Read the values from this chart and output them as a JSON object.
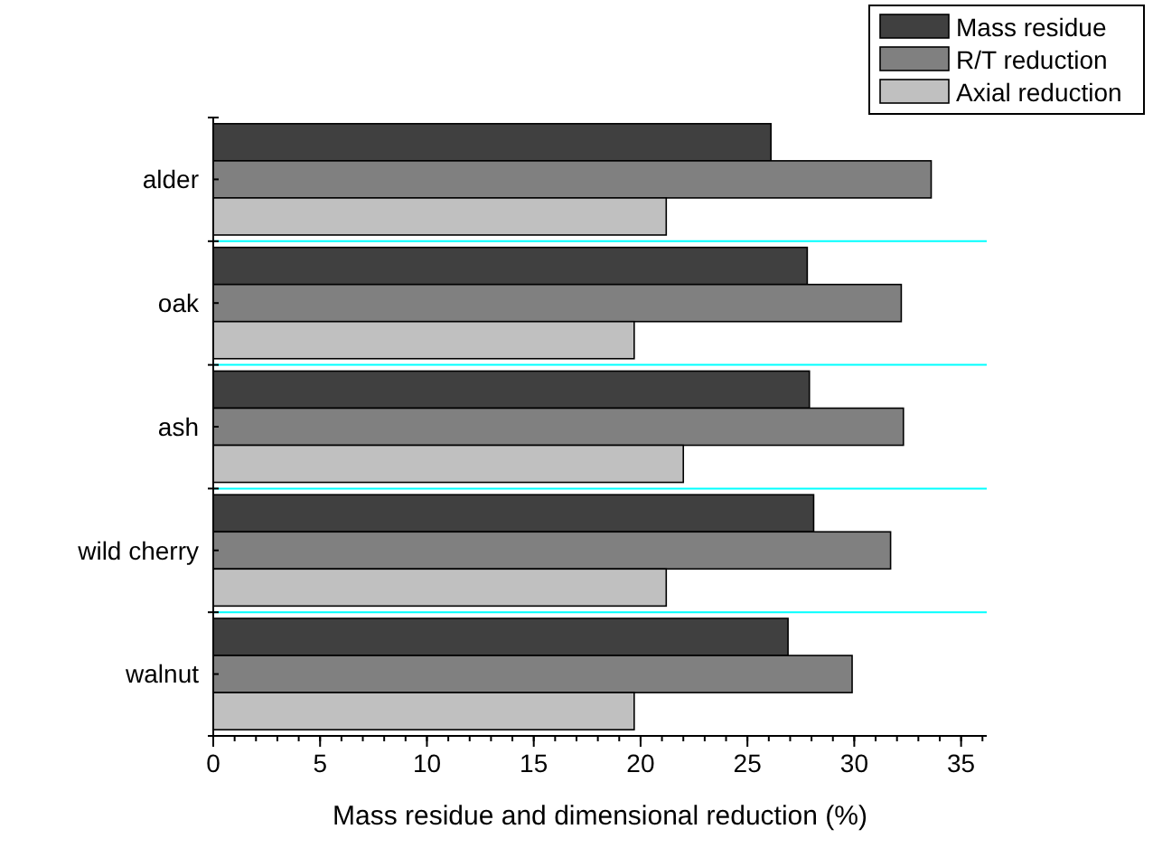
{
  "chart_data": {
    "type": "bar",
    "orientation": "horizontal",
    "xlabel": "Mass residue and dimensional reduction (%)",
    "categories": [
      "alder",
      "oak",
      "ash",
      "wild cherry",
      "walnut"
    ],
    "series": [
      {
        "name": "Mass residue",
        "color": "#404040",
        "values": [
          26.1,
          27.8,
          27.9,
          28.1,
          26.9
        ]
      },
      {
        "name": "R/T reduction",
        "color": "#808080",
        "values": [
          33.6,
          32.2,
          32.3,
          31.7,
          29.9
        ]
      },
      {
        "name": "Axial reduction",
        "color": "#c0c0c0",
        "values": [
          21.2,
          19.7,
          22.0,
          21.2,
          19.7
        ]
      }
    ],
    "xlim": [
      0,
      36.2
    ],
    "xticks": [
      0,
      5,
      10,
      15,
      20,
      25,
      30,
      35
    ],
    "grid": "y",
    "legend": "top right"
  }
}
